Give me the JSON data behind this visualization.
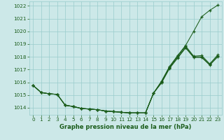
{
  "title": "Graphe pression niveau de la mer (hPa)",
  "bg_color": "#cce8e8",
  "grid_color": "#99cccc",
  "line_color": "#1a5c1a",
  "xlim": [
    -0.5,
    23.5
  ],
  "ylim": [
    1013.45,
    1022.35
  ],
  "yticks": [
    1014,
    1015,
    1016,
    1017,
    1018,
    1019,
    1020,
    1021,
    1022
  ],
  "xtick_labels": [
    "0",
    "1",
    "2",
    "3",
    "4",
    "5",
    "6",
    "7",
    "8",
    "9",
    "10",
    "11",
    "12",
    "13",
    "14",
    "15",
    "16",
    "17",
    "18",
    "19",
    "20",
    "21",
    "22",
    "23"
  ],
  "series": [
    [
      1015.75,
      1015.2,
      1015.1,
      1015.05,
      1014.2,
      1014.1,
      1013.95,
      1013.9,
      1013.85,
      1013.75,
      1013.7,
      1013.65,
      1013.6,
      1013.6,
      1013.6,
      1015.15,
      1016.1,
      1017.25,
      1018.1,
      1018.9,
      1020.0,
      1021.15,
      1021.65,
      1022.05
    ],
    [
      1015.75,
      1015.2,
      1015.1,
      1015.05,
      1014.2,
      1014.1,
      1013.95,
      1013.9,
      1013.85,
      1013.75,
      1013.7,
      1013.65,
      1013.6,
      1013.6,
      1013.6,
      1015.15,
      1016.05,
      1017.2,
      1018.05,
      1018.85,
      1018.05,
      1018.1,
      1017.45,
      1018.15
    ],
    [
      1015.75,
      1015.2,
      1015.1,
      1015.05,
      1014.2,
      1014.1,
      1013.95,
      1013.9,
      1013.85,
      1013.75,
      1013.7,
      1013.65,
      1013.6,
      1013.6,
      1013.6,
      1015.15,
      1016.0,
      1017.15,
      1017.95,
      1018.75,
      1018.0,
      1018.0,
      1017.4,
      1018.05
    ],
    [
      1015.75,
      1015.2,
      1015.1,
      1015.05,
      1014.2,
      1014.1,
      1013.95,
      1013.9,
      1013.85,
      1013.75,
      1013.7,
      1013.65,
      1013.6,
      1013.6,
      1013.6,
      1015.15,
      1015.95,
      1017.1,
      1017.9,
      1018.7,
      1017.95,
      1017.95,
      1017.35,
      1018.0
    ]
  ],
  "ylabel_fontsize": 5,
  "xlabel_fontsize": 6,
  "tick_fontsize": 5.2
}
